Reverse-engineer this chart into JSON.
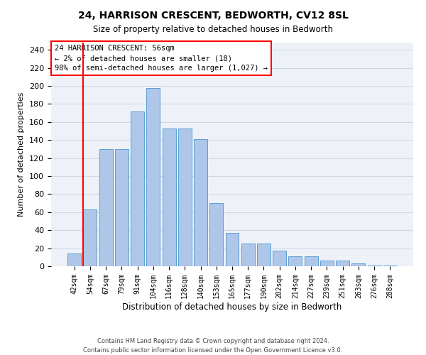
{
  "title": "24, HARRISON CRESCENT, BEDWORTH, CV12 8SL",
  "subtitle": "Size of property relative to detached houses in Bedworth",
  "xlabel": "Distribution of detached houses by size in Bedworth",
  "ylabel": "Number of detached properties",
  "bar_labels": [
    "42sqm",
    "54sqm",
    "67sqm",
    "79sqm",
    "91sqm",
    "104sqm",
    "116sqm",
    "128sqm",
    "140sqm",
    "153sqm",
    "165sqm",
    "177sqm",
    "190sqm",
    "202sqm",
    "214sqm",
    "227sqm",
    "239sqm",
    "251sqm",
    "263sqm",
    "276sqm",
    "288sqm"
  ],
  "bar_values": [
    14,
    63,
    130,
    130,
    172,
    198,
    153,
    153,
    141,
    70,
    37,
    25,
    25,
    17,
    11,
    11,
    6,
    6,
    3,
    1,
    1
  ],
  "bar_color": "#aec6e8",
  "bar_edge_color": "#5a9fd4",
  "grid_color": "#d0d8e8",
  "bg_color": "#eef2f8",
  "ylim": [
    0,
    248
  ],
  "yticks": [
    0,
    20,
    40,
    60,
    80,
    100,
    120,
    140,
    160,
    180,
    200,
    220,
    240
  ],
  "redline_bar_index": 1,
  "annotation_text": "24 HARRISON CRESCENT: 56sqm\n← 2% of detached houses are smaller (18)\n98% of semi-detached houses are larger (1,027) →",
  "footer_line1": "Contains HM Land Registry data © Crown copyright and database right 2024.",
  "footer_line2": "Contains public sector information licensed under the Open Government Licence v3.0."
}
